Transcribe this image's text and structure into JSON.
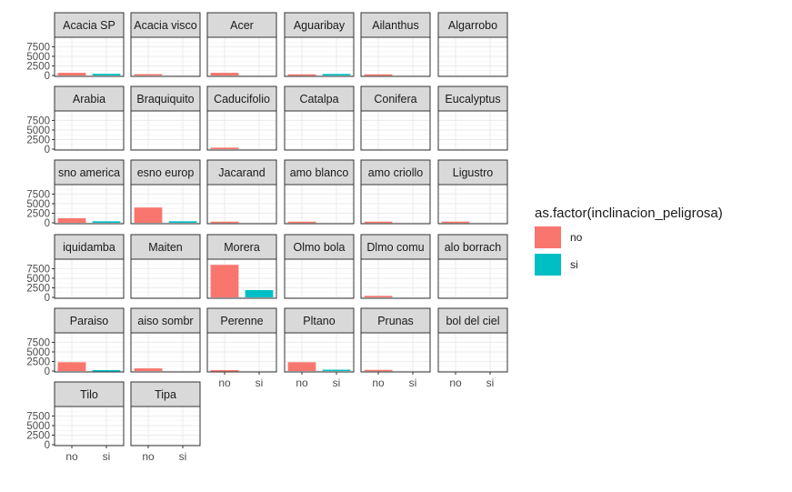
{
  "chart_data": {
    "type": "bar",
    "faceted": true,
    "x_categories": [
      "no",
      "si"
    ],
    "y_ticks": [
      0,
      2500,
      5000,
      7500
    ],
    "ylim": [
      0,
      9500
    ],
    "grid": true,
    "legend": {
      "title": "as.factor(inclinacion_peligrosa)",
      "position": "right",
      "entries": [
        {
          "label": "no",
          "color": "#F8766D"
        },
        {
          "label": "si",
          "color": "#00BFC4"
        }
      ]
    },
    "facets": [
      {
        "strip": "Acacia SP",
        "values": [
          700,
          450
        ]
      },
      {
        "strip": "Acacia visco",
        "values": [
          350,
          0
        ]
      },
      {
        "strip": "Acer",
        "values": [
          700,
          0
        ]
      },
      {
        "strip": "Aguaribay",
        "values": [
          300,
          400
        ]
      },
      {
        "strip": "Ailanthus",
        "values": [
          300,
          0
        ]
      },
      {
        "strip": "Algarrobo",
        "values": [
          0,
          0
        ]
      },
      {
        "strip": "Arabia",
        "values": [
          0,
          0
        ]
      },
      {
        "strip": "Braquiquito",
        "values": [
          0,
          0
        ]
      },
      {
        "strip": "Caducifolio",
        "values": [
          400,
          0
        ]
      },
      {
        "strip": "Catalpa",
        "values": [
          0,
          0
        ]
      },
      {
        "strip": "Conifera",
        "values": [
          0,
          0
        ]
      },
      {
        "strip": "Eucalyptus",
        "values": [
          0,
          0
        ]
      },
      {
        "strip": "sno america",
        "values": [
          1200,
          400
        ]
      },
      {
        "strip": "esno europ",
        "values": [
          4000,
          400
        ]
      },
      {
        "strip": "Jacarand",
        "values": [
          300,
          0
        ]
      },
      {
        "strip": "amo blanco",
        "values": [
          300,
          0
        ]
      },
      {
        "strip": "amo criollo",
        "values": [
          300,
          0
        ]
      },
      {
        "strip": "Ligustro",
        "values": [
          300,
          0
        ]
      },
      {
        "strip": "iquidamba",
        "values": [
          0,
          0
        ]
      },
      {
        "strip": "Maiten",
        "values": [
          0,
          0
        ]
      },
      {
        "strip": "Morera",
        "values": [
          8500,
          1900
        ]
      },
      {
        "strip": "Olmo bola",
        "values": [
          0,
          0
        ]
      },
      {
        "strip": "Dlmo comu",
        "values": [
          400,
          0
        ]
      },
      {
        "strip": "alo borrach",
        "values": [
          0,
          0
        ]
      },
      {
        "strip": "Paraiso",
        "values": [
          2300,
          250
        ]
      },
      {
        "strip": "aiso sombr",
        "values": [
          700,
          0
        ]
      },
      {
        "strip": "Perenne",
        "values": [
          250,
          0
        ]
      },
      {
        "strip": "Pltano",
        "values": [
          2300,
          350
        ]
      },
      {
        "strip": "Prunas",
        "values": [
          300,
          0
        ]
      },
      {
        "strip": "bol del ciel",
        "values": [
          0,
          0
        ]
      },
      {
        "strip": "Tilo",
        "values": [
          0,
          0
        ]
      },
      {
        "strip": "Tipa",
        "values": [
          0,
          0
        ]
      }
    ]
  }
}
